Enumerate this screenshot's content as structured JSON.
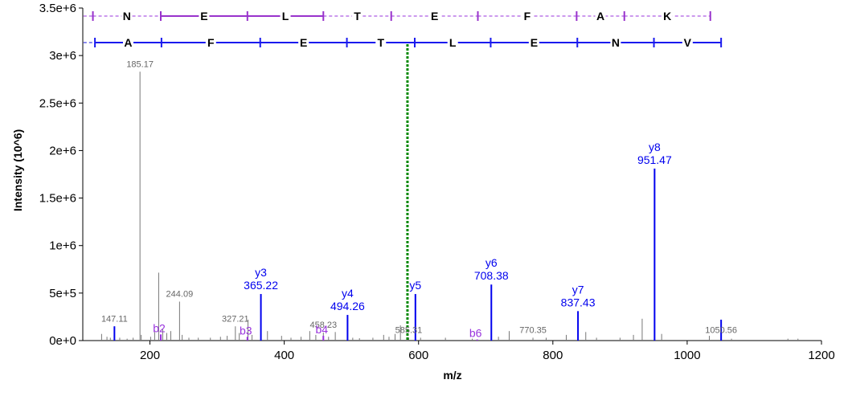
{
  "chart_data": {
    "type": "spectrum",
    "xlabel": "m/z",
    "ylabel": "Intensity (10^6)",
    "xlim": [
      100,
      1200
    ],
    "ylim": [
      0,
      3500000
    ],
    "x_ticks": [
      200,
      400,
      600,
      800,
      1000,
      1200
    ],
    "y_ticks": [
      {
        "value": 0,
        "label": "0e+0"
      },
      {
        "value": 500000,
        "label": "5e+5"
      },
      {
        "value": 1000000,
        "label": "1e+6"
      },
      {
        "value": 1500000,
        "label": "1.5e+6"
      },
      {
        "value": 2000000,
        "label": "2e+6"
      },
      {
        "value": 2500000,
        "label": "2.5e+6"
      },
      {
        "value": 3000000,
        "label": "3e+6"
      },
      {
        "value": 3500000,
        "label": "3.5e+6"
      }
    ],
    "colors": {
      "y_ion": "#0000ee",
      "b_ion": "#9933dd",
      "unassigned": "#777777",
      "precursor": "#008800",
      "seq_b": "#9933cc",
      "seq_b_dash": "#cc99ee",
      "seq_y": "#1a1aee",
      "seq_y_dash": "#8888ee"
    },
    "precursor_mz": 583.5,
    "unassigned_peaks": [
      {
        "mz": 128,
        "intensity": 70000
      },
      {
        "mz": 136,
        "intensity": 40000
      },
      {
        "mz": 141,
        "intensity": 30000
      },
      {
        "mz": 147.11,
        "intensity": 150000,
        "label": "147.11"
      },
      {
        "mz": 155,
        "intensity": 30000
      },
      {
        "mz": 166,
        "intensity": 20000
      },
      {
        "mz": 175,
        "intensity": 30000
      },
      {
        "mz": 185.17,
        "intensity": 2830000,
        "label": "185.17"
      },
      {
        "mz": 187,
        "intensity": 60000
      },
      {
        "mz": 201,
        "intensity": 40000
      },
      {
        "mz": 207,
        "intensity": 90000
      },
      {
        "mz": 213,
        "intensity": 715000
      },
      {
        "mz": 219,
        "intensity": 120000
      },
      {
        "mz": 225,
        "intensity": 80000
      },
      {
        "mz": 231,
        "intensity": 100000
      },
      {
        "mz": 244.09,
        "intensity": 410000,
        "label": "244.09"
      },
      {
        "mz": 248,
        "intensity": 60000
      },
      {
        "mz": 258,
        "intensity": 30000
      },
      {
        "mz": 272,
        "intensity": 30000
      },
      {
        "mz": 290,
        "intensity": 30000
      },
      {
        "mz": 305,
        "intensity": 40000
      },
      {
        "mz": 315,
        "intensity": 50000
      },
      {
        "mz": 327.21,
        "intensity": 150000,
        "label": "327.21"
      },
      {
        "mz": 333,
        "intensity": 80000
      },
      {
        "mz": 346,
        "intensity": 220000
      },
      {
        "mz": 352,
        "intensity": 60000
      },
      {
        "mz": 375,
        "intensity": 100000
      },
      {
        "mz": 396,
        "intensity": 50000
      },
      {
        "mz": 410,
        "intensity": 30000
      },
      {
        "mz": 425,
        "intensity": 40000
      },
      {
        "mz": 438,
        "intensity": 100000
      },
      {
        "mz": 447,
        "intensity": 60000
      },
      {
        "mz": 458.23,
        "intensity": 85000,
        "label": "458.23"
      },
      {
        "mz": 466,
        "intensity": 40000
      },
      {
        "mz": 476,
        "intensity": 90000
      },
      {
        "mz": 502,
        "intensity": 30000
      },
      {
        "mz": 512,
        "intensity": 25000
      },
      {
        "mz": 532,
        "intensity": 30000
      },
      {
        "mz": 548,
        "intensity": 60000
      },
      {
        "mz": 556,
        "intensity": 40000
      },
      {
        "mz": 565,
        "intensity": 70000
      },
      {
        "mz": 573,
        "intensity": 160000
      },
      {
        "mz": 585.31,
        "intensity": 30000,
        "label": "585.31"
      },
      {
        "mz": 603,
        "intensity": 30000
      },
      {
        "mz": 640,
        "intensity": 30000
      },
      {
        "mz": 680,
        "intensity": 20000
      },
      {
        "mz": 719,
        "intensity": 40000
      },
      {
        "mz": 735,
        "intensity": 100000
      },
      {
        "mz": 770.35,
        "intensity": 30000,
        "label": "770.35"
      },
      {
        "mz": 790,
        "intensity": 30000
      },
      {
        "mz": 820,
        "intensity": 60000
      },
      {
        "mz": 849,
        "intensity": 90000
      },
      {
        "mz": 865,
        "intensity": 30000
      },
      {
        "mz": 900,
        "intensity": 30000
      },
      {
        "mz": 920,
        "intensity": 60000
      },
      {
        "mz": 933,
        "intensity": 230000
      },
      {
        "mz": 962,
        "intensity": 70000
      },
      {
        "mz": 1033,
        "intensity": 50000
      },
      {
        "mz": 1050.56,
        "intensity": 30000,
        "label": "1050.56"
      },
      {
        "mz": 1066,
        "intensity": 20000
      },
      {
        "mz": 1150,
        "intensity": 20000
      },
      {
        "mz": 1165,
        "intensity": 20000
      }
    ],
    "y_ions": [
      {
        "label": "y3",
        "mz": 365.22,
        "intensity": 490000
      },
      {
        "label": "y4",
        "mz": 494.26,
        "intensity": 270000
      },
      {
        "label": "y5",
        "mz": 595.31,
        "intensity": 490000
      },
      {
        "label": "y6",
        "mz": 708.38,
        "intensity": 590000
      },
      {
        "label": "y7",
        "mz": 837.43,
        "intensity": 310000
      },
      {
        "label": "y8",
        "mz": 951.47,
        "intensity": 1810000
      },
      {
        "label": "",
        "mz": 1050.56,
        "intensity": 220000
      },
      {
        "label": "",
        "mz": 147.11,
        "intensity": 150000
      }
    ],
    "b_ions": [
      {
        "label": "b2",
        "mz": 216.12,
        "intensity": 65000
      },
      {
        "label": "b3",
        "mz": 345.16,
        "intensity": 40000
      },
      {
        "label": "b4",
        "mz": 458.23,
        "intensity": 50000
      },
      {
        "label": "b6",
        "mz": 687.3,
        "intensity": 12000
      }
    ],
    "y_annotations": [
      {
        "ion": "y3",
        "mz_text": "365.22"
      },
      {
        "ion": "y4",
        "mz_text": "494.26"
      },
      {
        "ion": "y5",
        "mz_text": ""
      },
      {
        "ion": "y6",
        "mz_text": "708.38"
      },
      {
        "ion": "y7",
        "mz_text": "837.43"
      },
      {
        "ion": "y8",
        "mz_text": "951.47"
      }
    ],
    "sequence_b": {
      "letters": [
        "N",
        "E",
        "L",
        "T",
        "E",
        "F",
        "A",
        "K"
      ],
      "boundaries_mz": [
        101,
        115.05,
        216.1,
        345.14,
        458.23,
        559.28,
        688.32,
        835.39,
        906.43,
        1034.5
      ],
      "solid_segments": [
        [
          216.1,
          345.14
        ],
        [
          345.14,
          458.23
        ]
      ]
    },
    "sequence_y": {
      "letters": [
        "A",
        "F",
        "E",
        "T",
        "L",
        "E",
        "N",
        "V"
      ],
      "boundaries_mz": [
        101,
        118.09,
        217.16,
        364.23,
        493.27,
        594.32,
        707.4,
        836.45,
        950.49,
        1050.56
      ],
      "dashed_segments": [
        [
          101,
          118.09
        ]
      ]
    }
  }
}
